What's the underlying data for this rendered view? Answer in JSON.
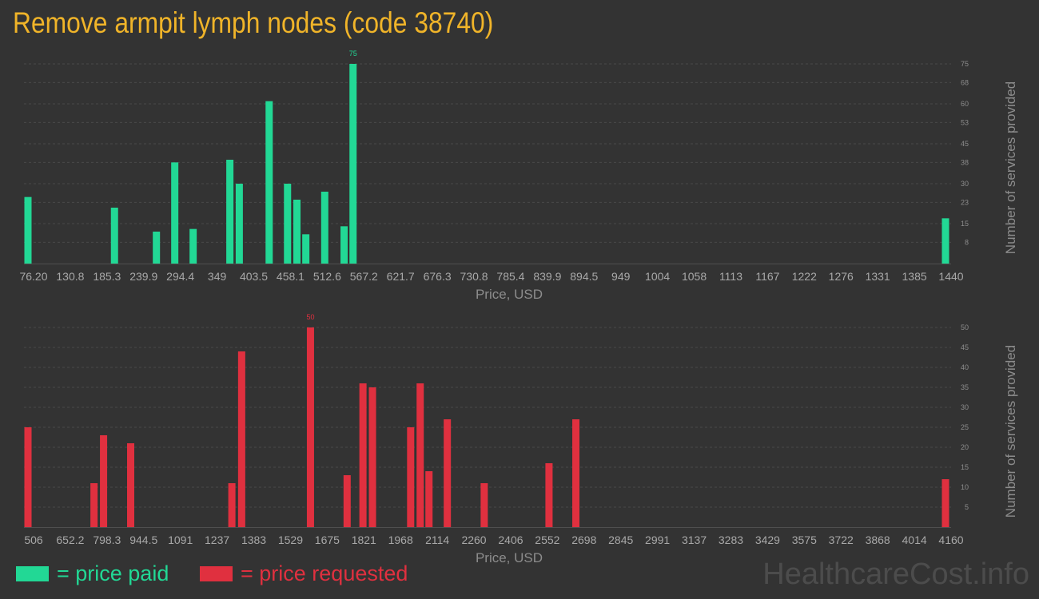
{
  "title": "Remove armpit lymph nodes (code 38740)",
  "legend": {
    "paid_label": "= price paid",
    "requested_label": "= price requested",
    "paid_color": "#22d895",
    "requested_color": "#e0303f"
  },
  "watermark": "HealthcareCost.info",
  "chart_data": [
    {
      "type": "bar",
      "name": "price paid",
      "color": "#22d895",
      "xlabel": "Price, USD",
      "ylabel": "Number of services provided",
      "xlim": [
        76.2,
        1440
      ],
      "ylim": [
        0,
        75
      ],
      "x_ticks": [
        "76.20",
        "130.8",
        "185.3",
        "239.9",
        "294.4",
        "349",
        "403.5",
        "458.1",
        "512.6",
        "567.2",
        "621.7",
        "676.3",
        "730.8",
        "785.4",
        "839.9",
        "894.5",
        "949",
        "1004",
        "1058",
        "1113",
        "1167",
        "1222",
        "1276",
        "1331",
        "1385",
        "1440"
      ],
      "y_ticks": [
        "8",
        "15",
        "23",
        "30",
        "38",
        "45",
        "53",
        "60",
        "68",
        "75"
      ],
      "peak_label": "75",
      "bars": [
        {
          "x": 76.2,
          "y": 25
        },
        {
          "x": 204.8,
          "y": 21
        },
        {
          "x": 267.1,
          "y": 12
        },
        {
          "x": 294.4,
          "y": 38
        },
        {
          "x": 321.7,
          "y": 13
        },
        {
          "x": 376.3,
          "y": 39
        },
        {
          "x": 390.3,
          "y": 30
        },
        {
          "x": 434.7,
          "y": 61
        },
        {
          "x": 462.0,
          "y": 30
        },
        {
          "x": 476.0,
          "y": 24
        },
        {
          "x": 489.2,
          "y": 11
        },
        {
          "x": 517.3,
          "y": 27
        },
        {
          "x": 546.1,
          "y": 14
        },
        {
          "x": 559.4,
          "y": 75
        },
        {
          "x": 1440,
          "y": 17
        }
      ]
    },
    {
      "type": "bar",
      "name": "price requested",
      "color": "#e0303f",
      "xlabel": "Price, USD",
      "ylabel": "Number of services provided",
      "xlim": [
        506,
        4160
      ],
      "ylim": [
        0,
        50
      ],
      "x_ticks": [
        "506",
        "652.2",
        "798.3",
        "944.5",
        "1091",
        "1237",
        "1383",
        "1529",
        "1675",
        "1821",
        "1968",
        "2114",
        "2260",
        "2406",
        "2552",
        "2698",
        "2845",
        "2991",
        "3137",
        "3283",
        "3429",
        "3575",
        "3722",
        "3868",
        "4014",
        "4160"
      ],
      "y_ticks": [
        "5",
        "10",
        "15",
        "20",
        "25",
        "30",
        "35",
        "40",
        "45",
        "50"
      ],
      "peak_label": "50",
      "bars": [
        {
          "x": 506,
          "y": 25
        },
        {
          "x": 769,
          "y": 11
        },
        {
          "x": 807,
          "y": 23
        },
        {
          "x": 915,
          "y": 21
        },
        {
          "x": 1318,
          "y": 11
        },
        {
          "x": 1357,
          "y": 44
        },
        {
          "x": 1631,
          "y": 50
        },
        {
          "x": 1777,
          "y": 13
        },
        {
          "x": 1840,
          "y": 36
        },
        {
          "x": 1878,
          "y": 35
        },
        {
          "x": 2030,
          "y": 25
        },
        {
          "x": 2068,
          "y": 36
        },
        {
          "x": 2103,
          "y": 14
        },
        {
          "x": 2176,
          "y": 27
        },
        {
          "x": 2323,
          "y": 11
        },
        {
          "x": 2581,
          "y": 16
        },
        {
          "x": 2688,
          "y": 27
        },
        {
          "x": 4160,
          "y": 12
        }
      ]
    }
  ]
}
